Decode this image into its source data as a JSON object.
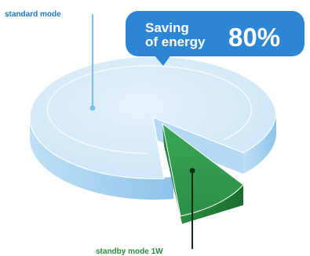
{
  "chart_data": {
    "type": "pie",
    "style": "3d",
    "slices": [
      {
        "label": "standard mode",
        "value": 80
      },
      {
        "label": "standby mode 1W",
        "value": 20
      }
    ],
    "callout": {
      "text_line1": "Saving",
      "text_line2": "of energy",
      "percent": "80%"
    }
  },
  "colors": {
    "standard_top": "#d6ebfa",
    "standard_side": "#a9d3f1",
    "standby_top": "#2f9a47",
    "standby_side": "#1f7a36",
    "callout_bg": "#2d86d4",
    "label_text": "#1b79c8",
    "standby_label_text": "#2f8a40",
    "leader_blue": "#7fc0ea",
    "leader_dark": "#0d2e1a"
  }
}
